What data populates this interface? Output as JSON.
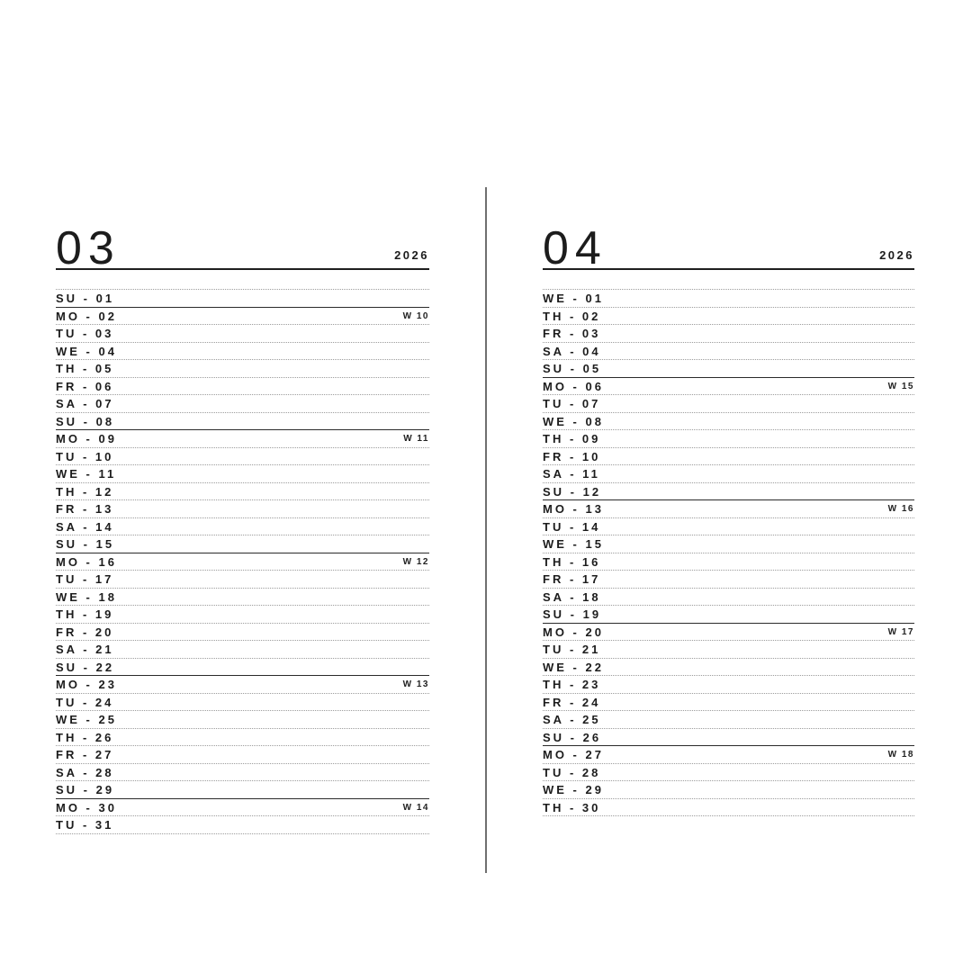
{
  "page": {
    "background": "#ffffff",
    "divider_color": "#6f6f6f",
    "text_color": "#1c1c1c",
    "solid_line_color": "#2b2b2b",
    "dotted_line_color": "#9c9c9c"
  },
  "months": [
    {
      "number": "03",
      "year": "2026",
      "days": [
        {
          "text": "SU - 01",
          "sunday": true
        },
        {
          "text": "MO - 02",
          "week": "W 10"
        },
        {
          "text": "TU - 03"
        },
        {
          "text": "WE - 04"
        },
        {
          "text": "TH - 05"
        },
        {
          "text": "FR - 06"
        },
        {
          "text": "SA - 07"
        },
        {
          "text": "SU - 08",
          "sunday": true
        },
        {
          "text": "MO - 09",
          "week": "W 11"
        },
        {
          "text": "TU - 10"
        },
        {
          "text": "WE - 11"
        },
        {
          "text": "TH - 12"
        },
        {
          "text": "FR - 13"
        },
        {
          "text": "SA - 14"
        },
        {
          "text": "SU - 15",
          "sunday": true
        },
        {
          "text": "MO - 16",
          "week": "W 12"
        },
        {
          "text": "TU - 17"
        },
        {
          "text": "WE - 18"
        },
        {
          "text": "TH - 19"
        },
        {
          "text": "FR - 20"
        },
        {
          "text": "SA - 21"
        },
        {
          "text": "SU - 22",
          "sunday": true
        },
        {
          "text": "MO - 23",
          "week": "W 13"
        },
        {
          "text": "TU - 24"
        },
        {
          "text": "WE - 25"
        },
        {
          "text": "TH - 26"
        },
        {
          "text": "FR - 27"
        },
        {
          "text": "SA - 28"
        },
        {
          "text": "SU - 29",
          "sunday": true
        },
        {
          "text": "MO - 30",
          "week": "W 14"
        },
        {
          "text": "TU - 31"
        }
      ]
    },
    {
      "number": "04",
      "year": "2026",
      "days": [
        {
          "text": "WE - 01"
        },
        {
          "text": "TH - 02"
        },
        {
          "text": "FR - 03"
        },
        {
          "text": "SA - 04"
        },
        {
          "text": "SU - 05",
          "sunday": true
        },
        {
          "text": "MO - 06",
          "week": "W 15"
        },
        {
          "text": "TU - 07"
        },
        {
          "text": "WE - 08"
        },
        {
          "text": "TH - 09"
        },
        {
          "text": "FR - 10"
        },
        {
          "text": "SA - 11"
        },
        {
          "text": "SU - 12",
          "sunday": true
        },
        {
          "text": "MO - 13",
          "week": "W 16"
        },
        {
          "text": "TU - 14"
        },
        {
          "text": "WE - 15"
        },
        {
          "text": "TH - 16"
        },
        {
          "text": "FR - 17"
        },
        {
          "text": "SA - 18"
        },
        {
          "text": "SU - 19",
          "sunday": true
        },
        {
          "text": "MO - 20",
          "week": "W 17"
        },
        {
          "text": "TU - 21"
        },
        {
          "text": "WE - 22"
        },
        {
          "text": "TH - 23"
        },
        {
          "text": "FR - 24"
        },
        {
          "text": "SA - 25"
        },
        {
          "text": "SU - 26",
          "sunday": true
        },
        {
          "text": "MO - 27",
          "week": "W 18"
        },
        {
          "text": "TU - 28"
        },
        {
          "text": "WE - 29"
        },
        {
          "text": "TH - 30"
        }
      ]
    }
  ]
}
